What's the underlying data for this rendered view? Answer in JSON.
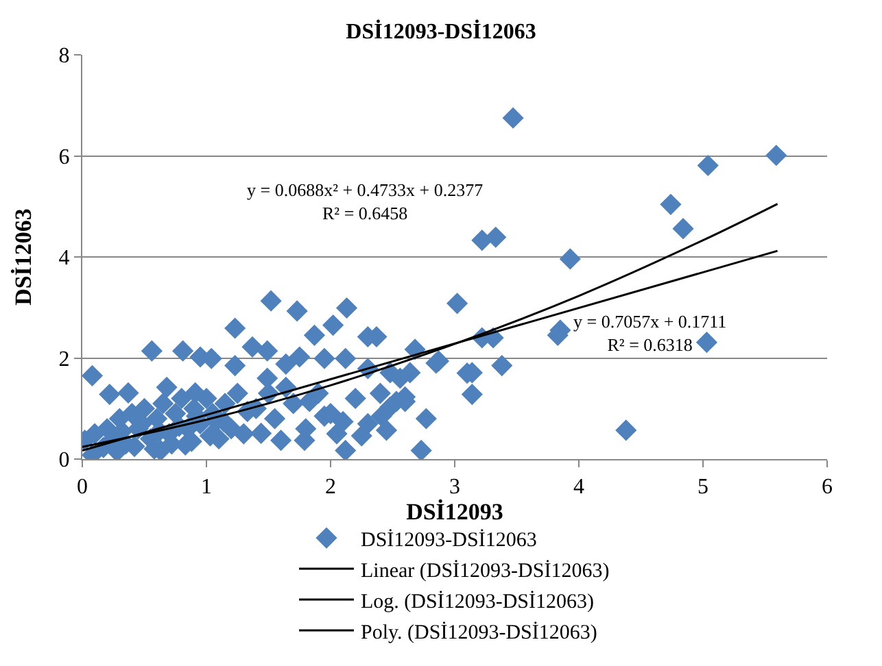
{
  "chart_data": {
    "type": "scatter",
    "title": "DSİ12093-DSİ12063",
    "xlabel": "DSİ12093",
    "ylabel": "DSİ12063",
    "xlim": [
      0,
      6
    ],
    "xticks": [
      0,
      1,
      2,
      3,
      4,
      5,
      6
    ],
    "ylim": [
      0,
      8
    ],
    "yticks": [
      0,
      2,
      4,
      6,
      8
    ],
    "grid": "y",
    "legend": "bottom",
    "annotations": [
      "y = 0.0688x² + 0.4733x + 0.2377\nR² = 0.6458",
      "y = 0.7057x + 0.1711\nR² = 0.6318"
    ],
    "series": [
      {
        "name": "DSİ12093-DSİ12063",
        "marker": "diamond",
        "color": "#4f81bd",
        "x": [
          3.47,
          5.59,
          5.04,
          4.74,
          4.84,
          3.93,
          3.22,
          3.33,
          3.02,
          4.38,
          5.03,
          3.85,
          3.83,
          3.22,
          3.31,
          3.38,
          3.14,
          3.14,
          2.77,
          2.73,
          2.85,
          2.68,
          2.56,
          2.48,
          2.6,
          2.45,
          0.08,
          0.56,
          1.52,
          1.73,
          2.13,
          1.23,
          1.87,
          2.02,
          2.3,
          2.37,
          2.87,
          3.1,
          0.81,
          0.95,
          1.04,
          1.37,
          1.49,
          1.23,
          1.64,
          1.75,
          1.95,
          2.12,
          2.3,
          2.48,
          2.64,
          2.12,
          2.6,
          0.22,
          0.37,
          0.68,
          0.91,
          1.33,
          1.44,
          1.6,
          1.79,
          1.95,
          2.1,
          2.25,
          2.41,
          2.53,
          1.83,
          1.64,
          1.49,
          1.14,
          1.03,
          0.83,
          0.63,
          0.17,
          0.02,
          0.1,
          0.2,
          0.25,
          0.3,
          0.35,
          0.4,
          0.45,
          0.5,
          0.55,
          0.6,
          0.65,
          0.7,
          0.75,
          0.8,
          0.85,
          0.9,
          0.95,
          1.0,
          1.05,
          1.1,
          1.15,
          1.2,
          1.25,
          1.3,
          1.4,
          1.5,
          1.55,
          1.7,
          1.8,
          1.9,
          2.0,
          2.05,
          2.2,
          2.3,
          2.4,
          0.08,
          0.28,
          0.32,
          0.42,
          0.48,
          0.58,
          0.62,
          0.72,
          0.78,
          0.88,
          0.92,
          1.08
        ],
        "values": [
          6.75,
          6.01,
          5.81,
          5.04,
          4.56,
          3.96,
          4.33,
          4.39,
          3.08,
          0.57,
          2.31,
          2.55,
          2.45,
          2.4,
          2.4,
          1.85,
          1.71,
          1.28,
          0.8,
          0.17,
          1.9,
          2.17,
          1.6,
          1.03,
          1.14,
          0.57,
          1.65,
          2.14,
          3.13,
          2.93,
          2.99,
          2.59,
          2.45,
          2.65,
          2.42,
          2.42,
          1.94,
          1.7,
          2.14,
          2.02,
          1.99,
          2.22,
          2.14,
          1.85,
          1.88,
          2.02,
          1.99,
          1.99,
          1.79,
          1.71,
          1.71,
          0.17,
          1.23,
          1.28,
          1.31,
          1.42,
          1.31,
          0.94,
          0.51,
          0.37,
          0.37,
          0.85,
          0.74,
          0.46,
          0.85,
          1.14,
          1.14,
          1.42,
          1.6,
          0.74,
          0.46,
          0.28,
          0.17,
          0.23,
          0.37,
          0.5,
          0.6,
          0.4,
          0.8,
          0.3,
          0.9,
          0.6,
          1.0,
          0.4,
          0.8,
          1.1,
          0.5,
          0.9,
          1.2,
          0.6,
          1.0,
          0.7,
          1.2,
          0.9,
          0.4,
          1.1,
          0.6,
          1.3,
          0.5,
          1.0,
          1.3,
          0.8,
          1.1,
          0.6,
          1.3,
          0.9,
          0.5,
          1.2,
          0.7,
          1.3,
          0.08,
          0.15,
          0.55,
          0.25,
          0.7,
          0.2,
          0.55,
          0.3,
          0.65,
          0.35,
          0.85,
          0.75
        ]
      },
      {
        "name": "Linear (DSİ12093-DSİ12063)",
        "type": "line",
        "color": "#000000",
        "x": [
          0,
          5.6
        ],
        "values": [
          0.17,
          4.12
        ]
      },
      {
        "name": "Log. (DSİ12093-DSİ12063)",
        "type": "line",
        "color": "#000000"
      },
      {
        "name": "Poly. (DSİ12093-DSİ12063)",
        "type": "line",
        "color": "#000000",
        "x": [
          0,
          1,
          2,
          3,
          4,
          5,
          5.6
        ],
        "values": [
          0.24,
          0.78,
          1.46,
          2.28,
          3.23,
          4.33,
          5.05
        ]
      }
    ]
  }
}
